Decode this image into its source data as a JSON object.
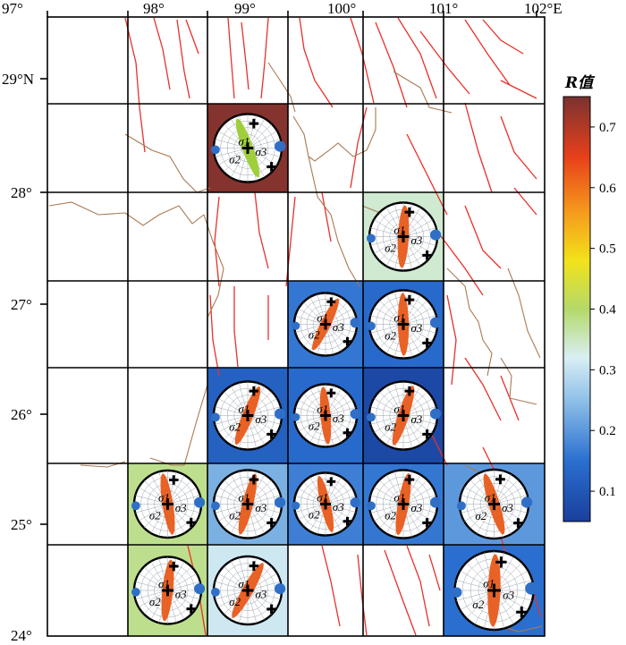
{
  "colors": {
    "frame": "#000000",
    "fault": "#e8312b",
    "boundary": "#a97a55",
    "plug_orange": "#e85a1a",
    "plug_green": "#9acd32",
    "azimuth_blue": "#2f6fc8"
  },
  "axes": {
    "lon_labels": [
      "97°",
      "98°",
      "99°",
      "100°",
      "101°",
      "102°E"
    ],
    "lat_labels": [
      "29°N",
      "28°",
      "27°",
      "26°",
      "25°",
      "24°"
    ]
  },
  "legend": {
    "title": "R值",
    "ticks": [
      "0.1",
      "0.2",
      "0.3",
      "0.4",
      "0.5",
      "0.6",
      "0.7"
    ],
    "range": [
      0.05,
      0.75
    ],
    "stops": [
      {
        "v": 0.05,
        "c": "#1a3f9c"
      },
      {
        "v": 0.15,
        "c": "#2a6fd0"
      },
      {
        "v": 0.25,
        "c": "#8fc0e8"
      },
      {
        "v": 0.32,
        "c": "#d9eff4"
      },
      {
        "v": 0.4,
        "c": "#b4d96a"
      },
      {
        "v": 0.48,
        "c": "#f2e21a"
      },
      {
        "v": 0.56,
        "c": "#f59a1c"
      },
      {
        "v": 0.65,
        "c": "#e8401a"
      },
      {
        "v": 0.75,
        "c": "#7a3230"
      }
    ]
  },
  "cells": [
    {
      "id": "r0c2",
      "row": 0,
      "col": 2,
      "R": 0.74,
      "stereonet": {
        "s1": "σ1",
        "s2": "σ2",
        "s3": "σ3"
      }
    },
    {
      "id": "r1c4",
      "row": 1,
      "col": 4,
      "R": 0.34,
      "stereonet": {
        "s1": "σ1",
        "s2": "σ2",
        "s3": "σ3"
      }
    },
    {
      "id": "r2c3",
      "row": 2,
      "col": 3,
      "R": 0.16,
      "stereonet": {
        "s1": "σ1",
        "s2": "σ2",
        "s3": "σ3"
      }
    },
    {
      "id": "r2c4",
      "row": 2,
      "col": 4,
      "R": 0.14,
      "stereonet": {
        "s1": "σ1",
        "s2": "σ2",
        "s3": "σ3"
      }
    },
    {
      "id": "r3c2",
      "row": 3,
      "col": 2,
      "R": 0.12,
      "stereonet": {
        "s1": "σ1",
        "s2": "σ2",
        "s3": "σ3"
      }
    },
    {
      "id": "r3c3",
      "row": 3,
      "col": 3,
      "R": 0.14,
      "stereonet": {
        "s1": "σ1",
        "s2": "σ2",
        "s3": "σ3"
      }
    },
    {
      "id": "r3c4",
      "row": 3,
      "col": 4,
      "R": 0.07,
      "stereonet": {
        "s1": "σ1",
        "s2": "σ2",
        "s3": "σ3"
      }
    },
    {
      "id": "r4c1",
      "row": 4,
      "col": 1,
      "R": 0.38,
      "stereonet": {
        "s1": "σ1",
        "s2": "σ2",
        "s3": "σ3"
      }
    },
    {
      "id": "r4c2",
      "row": 4,
      "col": 2,
      "R": 0.23,
      "stereonet": {
        "s1": "σ1",
        "s2": "σ2",
        "s3": "σ3"
      }
    },
    {
      "id": "r4c3",
      "row": 4,
      "col": 3,
      "R": 0.17,
      "stereonet": {
        "s1": "σ1",
        "s2": "σ2",
        "s3": "σ3"
      }
    },
    {
      "id": "r4c4",
      "row": 4,
      "col": 4,
      "R": 0.16,
      "stereonet": {
        "s1": "σ1",
        "s2": "σ2",
        "s3": "σ3"
      }
    },
    {
      "id": "r4c5",
      "row": 4,
      "col": 5,
      "R": 0.2,
      "stereonet": {
        "s1": "σ1",
        "s2": "σ2",
        "s3": "σ3"
      }
    },
    {
      "id": "r5c1",
      "row": 5,
      "col": 1,
      "R": 0.38,
      "stereonet": {
        "s1": "σ1",
        "s2": "σ2",
        "s3": "σ3"
      }
    },
    {
      "id": "r5c2",
      "row": 5,
      "col": 2,
      "R": 0.31,
      "stereonet": {
        "s1": "σ1",
        "s2": "σ2",
        "s3": "σ3"
      }
    },
    {
      "id": "r5c5",
      "row": 5,
      "col": 5,
      "R": 0.15,
      "stereonet": {
        "s1": "σ1",
        "s2": "σ2",
        "s3": "σ3"
      }
    }
  ]
}
